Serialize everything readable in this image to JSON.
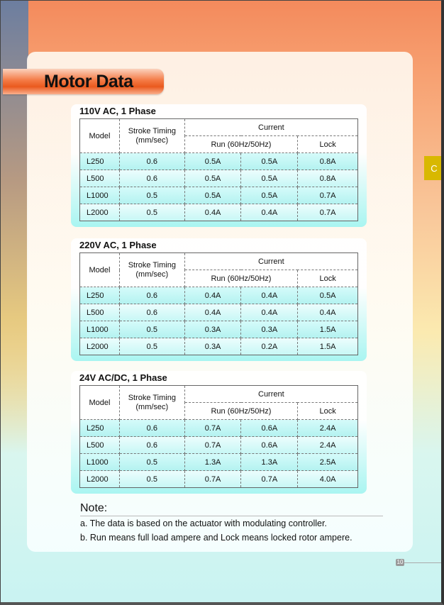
{
  "page": {
    "title": "Motor Data",
    "section_tab": "C",
    "page_number": "10"
  },
  "headers": {
    "model": "Model",
    "stroke": "Stroke Timing",
    "stroke_unit": "(mm/sec)",
    "current": "Current",
    "run": "Run (60Hz/50Hz)",
    "lock": "Lock"
  },
  "tables": [
    {
      "title": "110V AC, 1 Phase",
      "rows": [
        [
          "L250",
          "0.6",
          "0.5A",
          "0.5A",
          "0.8A"
        ],
        [
          "L500",
          "0.6",
          "0.5A",
          "0.5A",
          "0.8A"
        ],
        [
          "L1000",
          "0.5",
          "0.5A",
          "0.5A",
          "0.7A"
        ],
        [
          "L2000",
          "0.5",
          "0.4A",
          "0.4A",
          "0.7A"
        ]
      ]
    },
    {
      "title": "220V AC, 1 Phase",
      "rows": [
        [
          "L250",
          "0.6",
          "0.4A",
          "0.4A",
          "0.5A"
        ],
        [
          "L500",
          "0.6",
          "0.4A",
          "0.4A",
          "0.4A"
        ],
        [
          "L1000",
          "0.5",
          "0.3A",
          "0.3A",
          "1.5A"
        ],
        [
          "L2000",
          "0.5",
          "0.3A",
          "0.2A",
          "1.5A"
        ]
      ]
    },
    {
      "title": "24V AC/DC, 1 Phase",
      "rows": [
        [
          "L250",
          "0.6",
          "0.7A",
          "0.6A",
          "2.4A"
        ],
        [
          "L500",
          "0.6",
          "0.7A",
          "0.6A",
          "2.4A"
        ],
        [
          "L1000",
          "0.5",
          "1.3A",
          "1.3A",
          "2.5A"
        ],
        [
          "L2000",
          "0.5",
          "0.7A",
          "0.7A",
          "4.0A"
        ]
      ]
    }
  ],
  "note": {
    "heading": "Note:",
    "items": [
      "a. The data is based on the actuator with modulating controller.",
      "b. Run means full load ampere and Lock means locked rotor ampere."
    ]
  }
}
